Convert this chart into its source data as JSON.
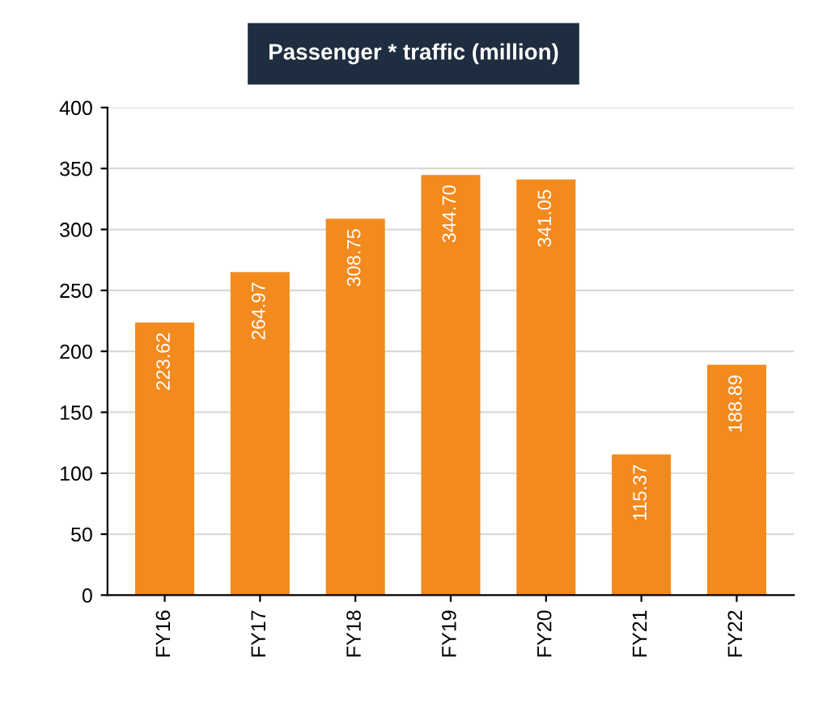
{
  "chart_data": {
    "type": "bar",
    "title": "Passenger * traffic (million)",
    "categories": [
      "FY16",
      "FY17",
      "FY18",
      "FY19",
      "FY20",
      "FY21",
      "FY22"
    ],
    "values": [
      223.62,
      264.97,
      308.75,
      344.7,
      341.05,
      115.37,
      188.89
    ],
    "value_labels": [
      "223.62",
      "264.97",
      "308.75",
      "344.70",
      "341.05",
      "115.37",
      "188.89"
    ],
    "color": "#f28a1e",
    "ylim": [
      0,
      400
    ],
    "yticks": [
      0,
      50,
      100,
      150,
      200,
      250,
      300,
      350,
      400
    ],
    "grid": "y"
  }
}
